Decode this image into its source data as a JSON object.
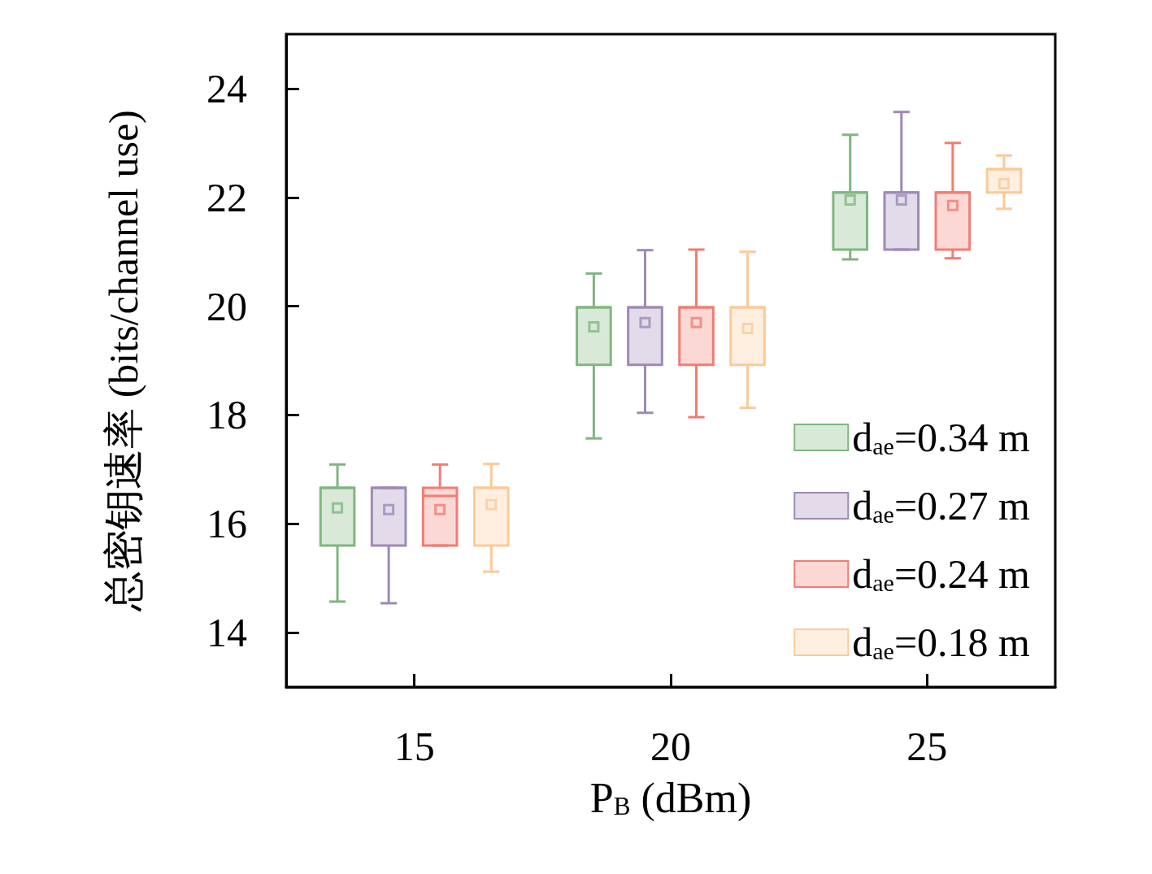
{
  "chart_data": {
    "type": "box",
    "xlabel": "P$_{B}$ (dBm)",
    "ylabel": "总密钥速率 (bits/channel use)",
    "xlim": [
      12.5,
      27.5
    ],
    "xticks": [
      15,
      20,
      25
    ],
    "ylim": [
      13,
      25
    ],
    "yticks": [
      14,
      16,
      18,
      20,
      22,
      24
    ],
    "grid": false,
    "legend": "bottom right",
    "marker": "square",
    "series": [
      {
        "name": "d$_{ae}$=0.34 m",
        "color": "#80b67f",
        "x": [
          13.5,
          18.5,
          23.5
        ],
        "boxes": [
          {
            "low": 14.57,
            "q1": 15.6,
            "median": 16.66,
            "q3": 16.66,
            "high": 17.09,
            "mean": 16.29
          },
          {
            "low": 17.57,
            "q1": 18.92,
            "median": 19.98,
            "q3": 19.98,
            "high": 20.6,
            "mean": 19.62
          },
          {
            "low": 20.86,
            "q1": 21.04,
            "median": 22.09,
            "q3": 22.09,
            "high": 23.15,
            "mean": 21.95
          }
        ]
      },
      {
        "name": "d$_{ae}$=0.27 m",
        "color": "#9f89b6",
        "x": [
          14.5,
          19.5,
          24.5
        ],
        "boxes": [
          {
            "low": 14.54,
            "q1": 15.6,
            "median": 16.66,
            "q3": 16.66,
            "high": 16.66,
            "mean": 16.26
          },
          {
            "low": 18.04,
            "q1": 18.92,
            "median": 19.98,
            "q3": 19.98,
            "high": 21.03,
            "mean": 19.7
          },
          {
            "low": 21.04,
            "q1": 21.04,
            "median": 22.09,
            "q3": 22.09,
            "high": 23.57,
            "mean": 21.95
          }
        ]
      },
      {
        "name": "d$_{ae}$=0.24 m",
        "color": "#f17d72",
        "x": [
          15.5,
          20.5,
          25.5
        ],
        "boxes": [
          {
            "low": 15.6,
            "q1": 15.6,
            "median": 16.51,
            "q3": 16.66,
            "high": 17.09,
            "mean": 16.26
          },
          {
            "low": 17.96,
            "q1": 18.92,
            "median": 19.98,
            "q3": 19.98,
            "high": 21.04,
            "mean": 19.7
          },
          {
            "low": 20.88,
            "q1": 21.04,
            "median": 22.09,
            "q3": 22.09,
            "high": 23.0,
            "mean": 21.85
          }
        ]
      },
      {
        "name": "d$_{ae}$=0.18 m",
        "color": "#fdc997",
        "x": [
          16.5,
          21.5,
          26.5
        ],
        "boxes": [
          {
            "low": 15.12,
            "q1": 15.6,
            "median": 16.66,
            "q3": 16.66,
            "high": 17.1,
            "mean": 16.35
          },
          {
            "low": 18.13,
            "q1": 18.92,
            "median": 19.98,
            "q3": 19.98,
            "high": 21.0,
            "mean": 19.59
          },
          {
            "low": 21.79,
            "q1": 22.09,
            "median": 22.52,
            "q3": 22.52,
            "high": 22.77,
            "mean": 22.25
          }
        ]
      }
    ]
  }
}
